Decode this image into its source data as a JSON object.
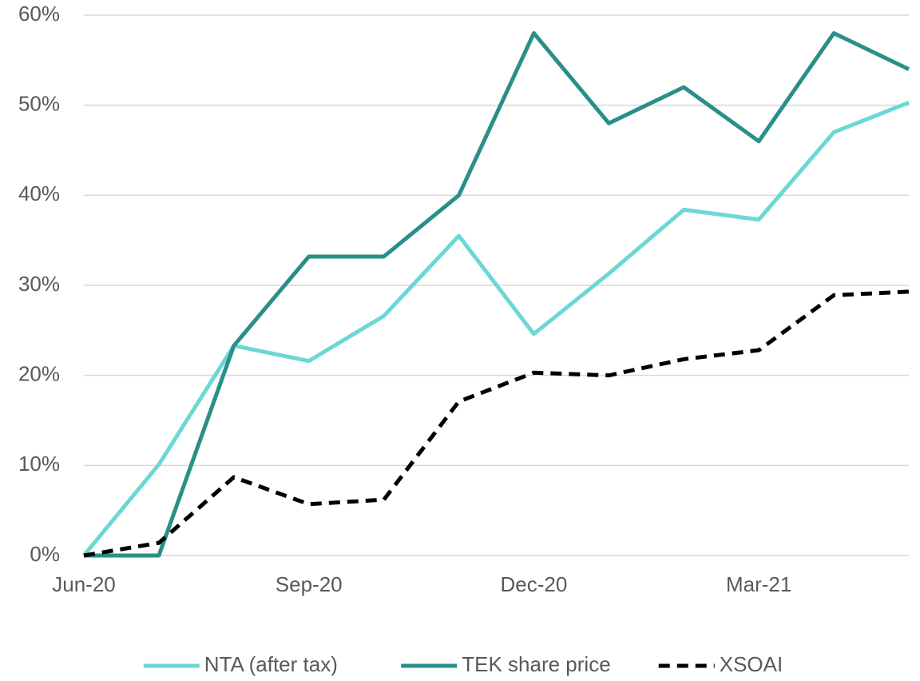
{
  "chart_data": {
    "type": "line",
    "categories": [
      "Jun-20",
      null,
      null,
      "Sep-20",
      null,
      null,
      "Dec-20",
      null,
      null,
      "Mar-21",
      null,
      null
    ],
    "series": [
      {
        "name": "NTA (after tax)",
        "color": "#6bd8d3",
        "values": [
          0,
          10.1,
          23.3,
          21.6,
          26.6,
          35.5,
          24.6,
          31.3,
          38.4,
          37.3,
          47,
          50.3
        ]
      },
      {
        "name": "TEK share price",
        "color": "#2a8f88",
        "values": [
          0,
          0,
          23.3,
          33.2,
          33.2,
          40,
          58,
          48,
          52,
          46,
          58,
          54
        ]
      },
      {
        "name": "XSOAI",
        "color": "#000000",
        "dashed": true,
        "values": [
          0,
          1.4,
          8.7,
          5.7,
          6.2,
          17.1,
          20.3,
          20,
          21.8,
          22.8,
          28.9,
          29.3
        ]
      }
    ],
    "ylim": [
      0,
      60
    ],
    "yticks": [
      {
        "value": 0,
        "label": "0%"
      },
      {
        "value": 10,
        "label": "10%"
      },
      {
        "value": 20,
        "label": "20%"
      },
      {
        "value": 30,
        "label": "30%"
      },
      {
        "value": 40,
        "label": "40%"
      },
      {
        "value": 50,
        "label": "50%"
      },
      {
        "value": 60,
        "label": "60%"
      }
    ],
    "grid": true,
    "legend": "bottom"
  }
}
